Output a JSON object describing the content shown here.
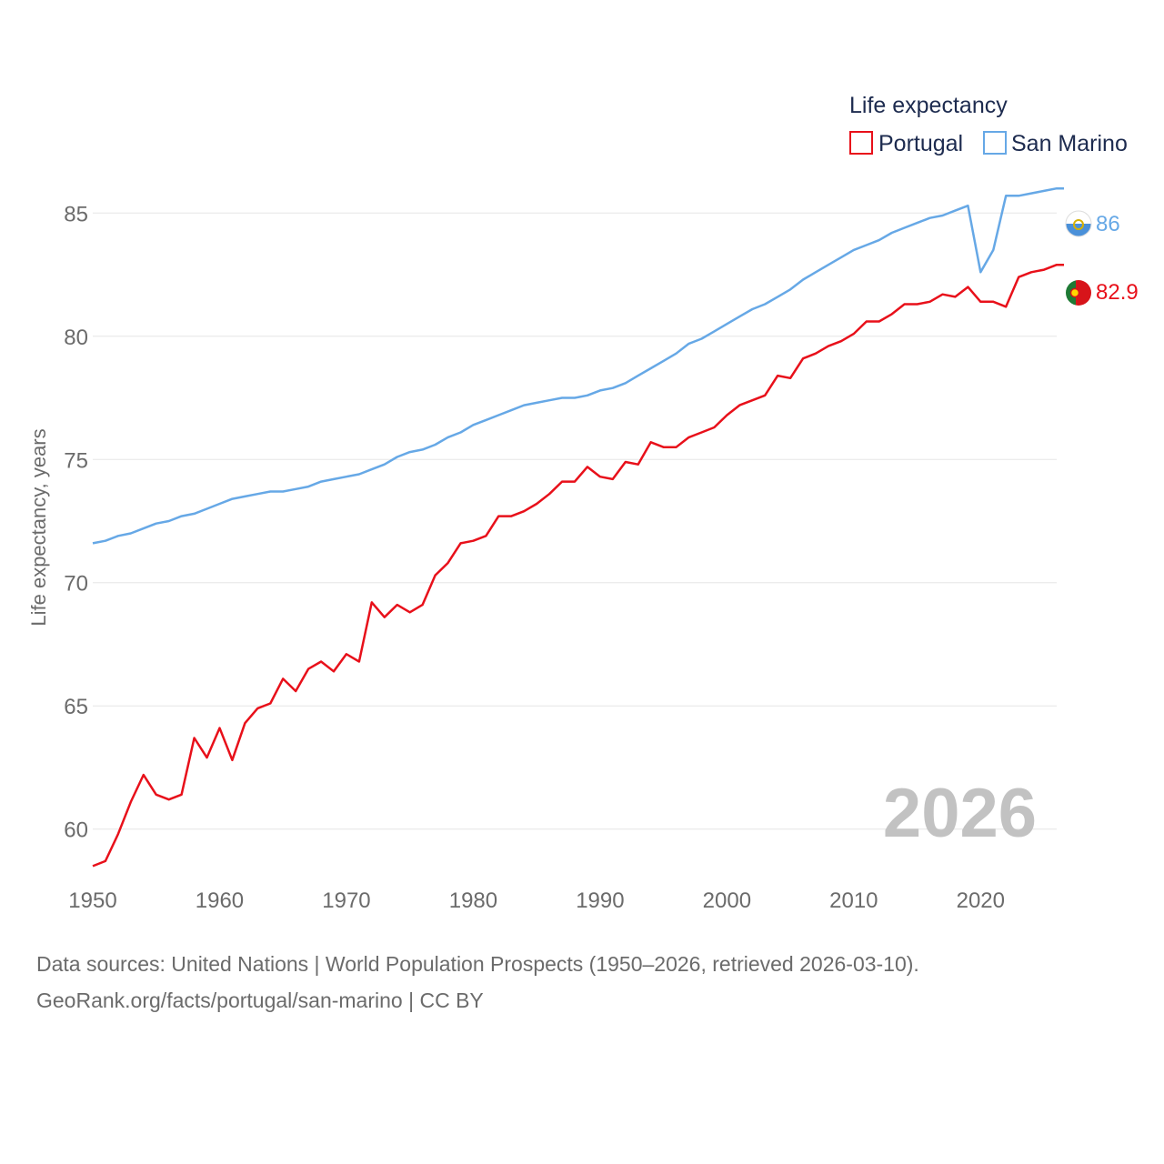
{
  "legend": {
    "title": "Life expectancy",
    "items": [
      {
        "name": "Portugal",
        "color": "#e8101a"
      },
      {
        "name": "San Marino",
        "color": "#66a8e6"
      }
    ]
  },
  "year_label": "2026",
  "source": {
    "line1": "Data sources: United Nations | World Population Prospects (1950–2026, retrieved 2026-03-10).",
    "line2": "GeoRank.org/facts/portugal/san-marino | CC BY"
  },
  "flags": {
    "portugal": "portugal-flag-icon",
    "san_marino": "san-marino-flag-icon"
  },
  "chart_data": {
    "type": "line",
    "title": "Life expectancy",
    "xlabel": "",
    "ylabel": "Life expectancy, years",
    "xlim": [
      1950,
      2026
    ],
    "ylim": [
      57,
      88
    ],
    "x_ticks": [
      1950,
      1960,
      1970,
      1980,
      1990,
      2000,
      2010,
      2020
    ],
    "y_ticks": [
      60,
      65,
      70,
      75,
      80,
      85
    ],
    "grid": true,
    "legend_position": "top-right",
    "x": [
      1950,
      1951,
      1952,
      1953,
      1954,
      1955,
      1956,
      1957,
      1958,
      1959,
      1960,
      1961,
      1962,
      1963,
      1964,
      1965,
      1966,
      1967,
      1968,
      1969,
      1970,
      1971,
      1972,
      1973,
      1974,
      1975,
      1976,
      1977,
      1978,
      1979,
      1980,
      1981,
      1982,
      1983,
      1984,
      1985,
      1986,
      1987,
      1988,
      1989,
      1990,
      1991,
      1992,
      1993,
      1994,
      1995,
      1996,
      1997,
      1998,
      1999,
      2000,
      2001,
      2002,
      2003,
      2004,
      2005,
      2006,
      2007,
      2008,
      2009,
      2010,
      2011,
      2012,
      2013,
      2014,
      2015,
      2016,
      2017,
      2018,
      2019,
      2020,
      2021,
      2022,
      2023,
      2024,
      2025,
      2026
    ],
    "series": [
      {
        "name": "Portugal",
        "color": "#e8101a",
        "end_label": "82.9",
        "values": [
          58.5,
          58.7,
          59.8,
          61.1,
          62.2,
          61.4,
          61.2,
          61.4,
          63.7,
          62.9,
          64.1,
          62.8,
          64.3,
          64.9,
          65.1,
          66.1,
          65.6,
          66.5,
          66.8,
          66.4,
          67.1,
          66.8,
          69.2,
          68.6,
          69.1,
          68.8,
          69.1,
          70.3,
          70.8,
          71.6,
          71.7,
          71.9,
          72.7,
          72.7,
          72.9,
          73.2,
          73.6,
          74.1,
          74.1,
          74.7,
          74.3,
          74.2,
          74.9,
          74.8,
          75.7,
          75.5,
          75.5,
          75.9,
          76.1,
          76.3,
          76.8,
          77.2,
          77.4,
          77.6,
          78.4,
          78.3,
          79.1,
          79.3,
          79.6,
          79.8,
          80.1,
          80.6,
          80.6,
          80.9,
          81.3,
          81.3,
          81.4,
          81.7,
          81.6,
          82.0,
          81.4,
          81.4,
          81.2,
          82.4,
          82.6,
          82.7,
          82.9
        ]
      },
      {
        "name": "San Marino",
        "color": "#66a8e6",
        "end_label": "86",
        "values": [
          71.6,
          71.7,
          71.9,
          72.0,
          72.2,
          72.4,
          72.5,
          72.7,
          72.8,
          73.0,
          73.2,
          73.4,
          73.5,
          73.6,
          73.7,
          73.7,
          73.8,
          73.9,
          74.1,
          74.2,
          74.3,
          74.4,
          74.6,
          74.8,
          75.1,
          75.3,
          75.4,
          75.6,
          75.9,
          76.1,
          76.4,
          76.6,
          76.8,
          77.0,
          77.2,
          77.3,
          77.4,
          77.5,
          77.5,
          77.6,
          77.8,
          77.9,
          78.1,
          78.4,
          78.7,
          79.0,
          79.3,
          79.7,
          79.9,
          80.2,
          80.5,
          80.8,
          81.1,
          81.3,
          81.6,
          81.9,
          82.3,
          82.6,
          82.9,
          83.2,
          83.5,
          83.7,
          83.9,
          84.2,
          84.4,
          84.6,
          84.8,
          84.9,
          85.1,
          85.3,
          82.6,
          83.5,
          85.7,
          85.7,
          85.8,
          85.9,
          86.0
        ]
      }
    ]
  }
}
